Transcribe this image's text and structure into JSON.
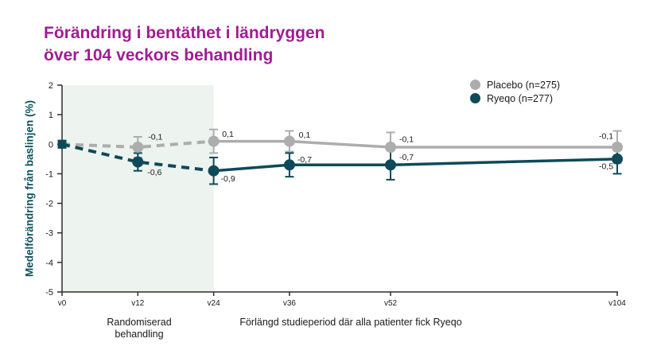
{
  "title": {
    "line1": "Förändring i bentäthet i ländryggen",
    "line2": "över 104 veckors behandling"
  },
  "legend": {
    "items": [
      {
        "label": "Placebo  (n=275)",
        "color": "#adadad"
      },
      {
        "label": "Ryeqo (n=277)",
        "color": "#0e4a59"
      }
    ]
  },
  "chart_data": {
    "type": "line",
    "title": "Förändring i bentäthet i ländryggen över 104 veckors behandling",
    "ylabel": "Medelförändring från baslinjen (%)",
    "xlabel": "",
    "ylim": [
      -5,
      2
    ],
    "yticks": [
      2,
      1,
      0,
      -1,
      -2,
      -3,
      -4,
      -5
    ],
    "categories": [
      "v0",
      "v12",
      "v24",
      "v36",
      "v52",
      "v104"
    ],
    "weeks": [
      0,
      12,
      24,
      36,
      52,
      104
    ],
    "series": [
      {
        "name": "Placebo (n=275)",
        "color": "#adadad",
        "values": [
          0,
          -0.1,
          0.1,
          0.1,
          -0.1,
          -0.1
        ],
        "point_labels": [
          "",
          "-0,1",
          "0,1",
          "0,1",
          "-0,1",
          "-0,1"
        ],
        "ci_halfwidth": [
          0,
          0.35,
          0.4,
          0.35,
          0.5,
          0.55
        ]
      },
      {
        "name": "Ryeqo (n=277)",
        "color": "#0e4a59",
        "values": [
          0,
          -0.6,
          -0.9,
          -0.7,
          -0.7,
          -0.5
        ],
        "point_labels": [
          "",
          "-0,6",
          "-0,9",
          "-0,7",
          "-0,7",
          "-0,5"
        ],
        "ci_halfwidth": [
          0,
          0.3,
          0.45,
          0.4,
          0.5,
          0.5
        ]
      }
    ],
    "dashed_segment_end_index": 2,
    "shaded_region": {
      "from_category": "v0",
      "to_category": "v24",
      "color": "#edf3ee"
    },
    "legend_position": "top-right",
    "grid": false
  },
  "annotations": {
    "randomized_line1": "Randomiserad",
    "randomized_line2": "behandling",
    "extension": "Förlängd studieperiod där alla patienter fick Ryeqo"
  },
  "colors": {
    "title": "#a01d93",
    "axis": "#2d2d2d",
    "text": "#1a1a1a",
    "ylabel": "#0e5260",
    "shaded_region": "#edf3ee"
  }
}
